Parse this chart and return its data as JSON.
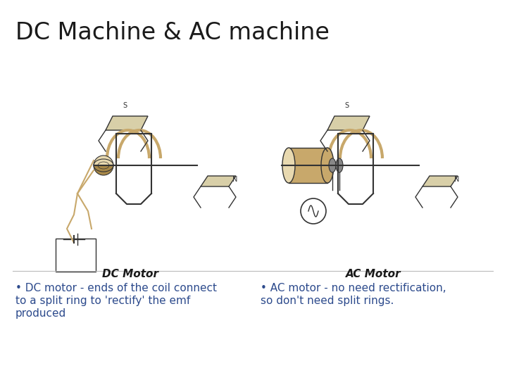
{
  "title": "DC Machine & AC machine",
  "title_fontsize": 24,
  "title_color": "#1a1a1a",
  "background_color": "#ffffff",
  "dc_label": "DC Motor",
  "ac_label": "AC Motor",
  "label_fontsize": 11,
  "label_color": "#1a1a1a",
  "bullet_left_lines": [
    "• DC motor - ends of the coil connect",
    "to a split ring to 'rectify' the emf",
    "produced"
  ],
  "bullet_right_lines": [
    "• AC motor - no need rectification,",
    "so don't need split rings."
  ],
  "bullet_fontsize": 11,
  "bullet_color": "#2c4a8c",
  "tan": "#c8a86b",
  "tan_light": "#e8d9b0",
  "dk": "#333333",
  "gray": "#888888"
}
